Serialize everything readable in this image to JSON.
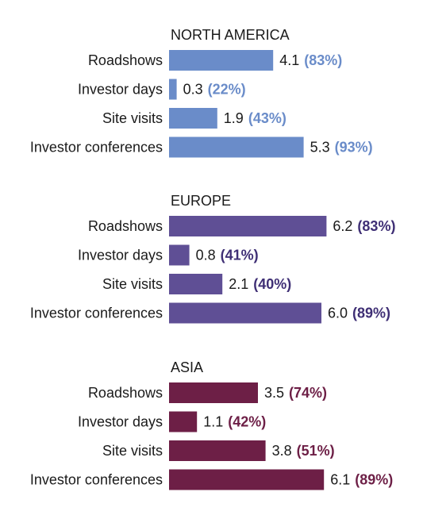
{
  "chart_data": {
    "type": "bar",
    "orientation": "horizontal",
    "title": "",
    "xlabel": "",
    "ylabel": "",
    "xlim": [
      0,
      6.5
    ],
    "grid": false,
    "legend": "none",
    "categories": [
      "Roadshows",
      "Investor days",
      "Site visits",
      "Investor conferences"
    ],
    "groups": [
      {
        "name": "NORTH AMERICA",
        "color": "#6a8cc9",
        "values": [
          4.1,
          0.3,
          1.9,
          5.3
        ],
        "value_labels": [
          "4.1",
          "0.3",
          "1.9",
          "5.3"
        ],
        "percent_labels": [
          "(83%)",
          "(22%)",
          "(43%)",
          "(93%)"
        ]
      },
      {
        "name": "EUROPE",
        "color": "#5f4f95",
        "values": [
          6.2,
          0.8,
          2.1,
          6.0
        ],
        "value_labels": [
          "6.2",
          "0.8",
          "2.1",
          "6.0"
        ],
        "percent_labels": [
          "(83%)",
          "(41%)",
          "(40%)",
          "(89%)"
        ]
      },
      {
        "name": "ASIA",
        "color": "#6d1f46",
        "values": [
          3.5,
          1.1,
          3.8,
          6.1
        ],
        "value_labels": [
          "3.5",
          "1.1",
          "3.8",
          "6.1"
        ],
        "percent_labels": [
          "(74%)",
          "(42%)",
          "(51%)",
          "(89%)"
        ]
      }
    ],
    "percent_label_colors": [
      "#6a8cc9",
      "#3f2f75",
      "#6d1f46"
    ]
  }
}
